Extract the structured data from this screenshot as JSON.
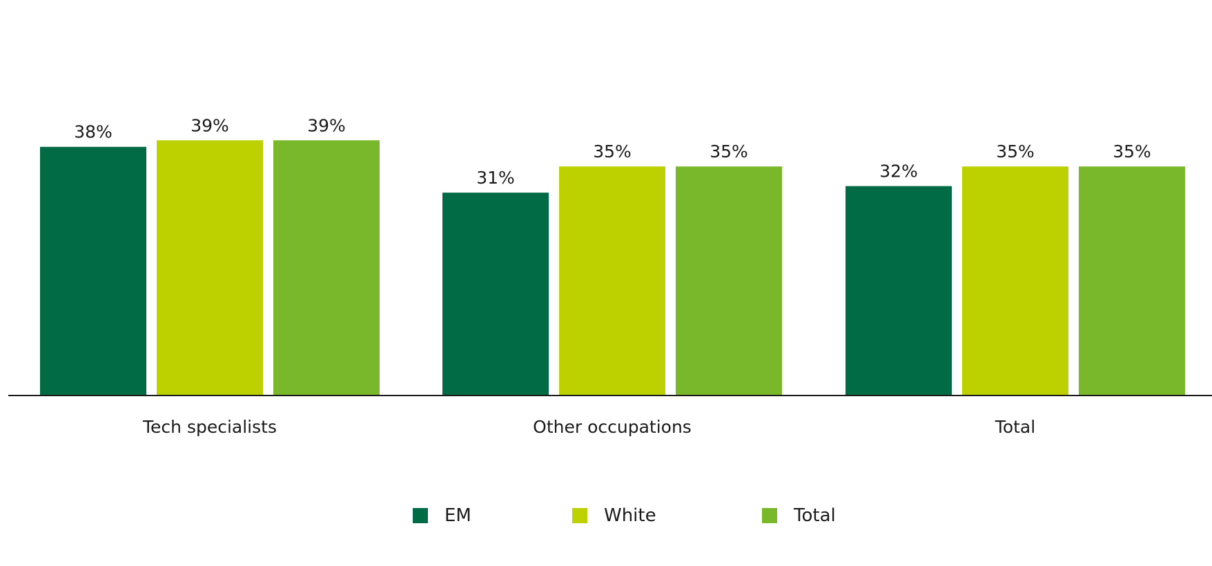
{
  "chart_data": {
    "type": "bar",
    "categories": [
      "Tech specialists",
      "Other occupations",
      "Total"
    ],
    "series": [
      {
        "name": "EM",
        "values": [
          38,
          31,
          32
        ],
        "color": "#006b44",
        "labels": [
          "38%",
          "31%",
          "32%"
        ]
      },
      {
        "name": "White",
        "values": [
          39,
          35,
          35
        ],
        "color": "#bdd100",
        "labels": [
          "39%",
          "35%",
          "35%"
        ]
      },
      {
        "name": "Total",
        "values": [
          39,
          35,
          35
        ],
        "color": "#78b82a",
        "labels": [
          "39%",
          "35%",
          "35%"
        ]
      }
    ],
    "ylim": [
      0,
      52
    ],
    "grid": false,
    "legend_position": "bottom-center",
    "title": "",
    "xlabel": "",
    "ylabel": ""
  },
  "legend": {
    "items": [
      {
        "label": "EM",
        "color": "#006b44"
      },
      {
        "label": "White",
        "color": "#bdd100"
      },
      {
        "label": "Total",
        "color": "#78b82a"
      }
    ]
  }
}
